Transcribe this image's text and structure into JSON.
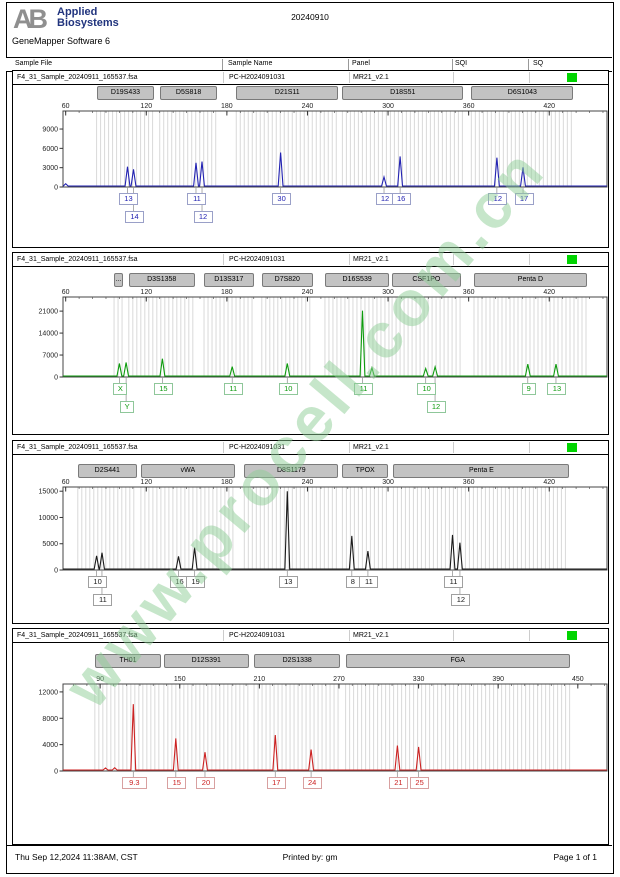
{
  "header": {
    "logo_mark": "AB",
    "brand_line1": "Applied",
    "brand_line2": "Biosystems",
    "app_title": "GeneMapper Software 6",
    "date_code": "20240910"
  },
  "table_header": {
    "sample_file": "Sample File",
    "sample_name": "Sample Name",
    "panel": "Panel",
    "sqi": "SQI",
    "sq": "SQ"
  },
  "status_color": "#00d400",
  "watermark": {
    "text": "www.procell.com.cn",
    "color": "rgba(142,206,150,0.5)"
  },
  "footer": {
    "datetime": "Thu Sep 12,2024 11:38AM, CST",
    "printed_by": "Printed by: gm",
    "page": "Page 1 of 1"
  },
  "chart_data": [
    {
      "type": "line",
      "sample_file": "F4_31_Sample_20240911_165537.fsa",
      "sample_name": "PC-H2024091031",
      "panel_name": "MR21_v2.1",
      "dye_color": "#2222b2",
      "label_border": "#9aa0c8",
      "x_range": [
        58,
        463
      ],
      "x_ticks": [
        60,
        120,
        180,
        240,
        300,
        360,
        420
      ],
      "y_ticks": [
        0,
        3000,
        6000,
        9000
      ],
      "y_max": 11800,
      "markers": [
        {
          "label": "D19S433",
          "start": 83,
          "end": 126
        },
        {
          "label": "D5S818",
          "start": 130,
          "end": 173
        },
        {
          "label": "D21S11",
          "start": 187,
          "end": 263
        },
        {
          "label": "D18S51",
          "start": 266,
          "end": 356
        },
        {
          "label": "D6S1043",
          "start": 362,
          "end": 438
        }
      ],
      "peaks": [
        {
          "bp": 60,
          "rfu": 350,
          "allele": "",
          "row": null
        },
        {
          "bp": 106,
          "rfu": 3000,
          "allele": "13",
          "row": 0
        },
        {
          "bp": 110.5,
          "rfu": 2600,
          "allele": "14",
          "row": 1
        },
        {
          "bp": 157,
          "rfu": 3600,
          "allele": "11",
          "row": 0
        },
        {
          "bp": 161.5,
          "rfu": 3800,
          "allele": "12",
          "row": 1
        },
        {
          "bp": 220,
          "rfu": 5200,
          "allele": "30",
          "row": 0
        },
        {
          "bp": 297,
          "rfu": 1400,
          "allele": "12",
          "row": 0
        },
        {
          "bp": 309,
          "rfu": 4600,
          "allele": "16",
          "row": 0
        },
        {
          "bp": 381,
          "rfu": 4400,
          "allele": "12",
          "row": 0
        },
        {
          "bp": 400.5,
          "rfu": 2900,
          "allele": "17",
          "row": 0
        }
      ]
    },
    {
      "type": "line",
      "sample_file": "F4_31_Sample_20240911_165537.fsa",
      "sample_name": "PC-H2024091031",
      "panel_name": "MR21_v2.1",
      "dye_color": "#0d9b0d",
      "label_border": "#8fc79a",
      "x_range": [
        58,
        463
      ],
      "x_ticks": [
        60,
        120,
        180,
        240,
        300,
        360,
        420
      ],
      "y_ticks": [
        0,
        7000,
        14000,
        21000
      ],
      "y_max": 25500,
      "markers": [
        {
          "label": "...",
          "start": 96,
          "end": 103
        },
        {
          "label": "D3S1358",
          "start": 107,
          "end": 156
        },
        {
          "label": "D13S317",
          "start": 163,
          "end": 200
        },
        {
          "label": "D7S820",
          "start": 206,
          "end": 244
        },
        {
          "label": "D16S539",
          "start": 253,
          "end": 301
        },
        {
          "label": "CSF1PO",
          "start": 303,
          "end": 354
        },
        {
          "label": "Penta D",
          "start": 364,
          "end": 448
        }
      ],
      "peaks": [
        {
          "bp": 100,
          "rfu": 4000,
          "allele": "X",
          "row": 0
        },
        {
          "bp": 105,
          "rfu": 4300,
          "allele": "Y",
          "row": 1
        },
        {
          "bp": 132,
          "rfu": 5500,
          "allele": "15",
          "row": 0
        },
        {
          "bp": 184,
          "rfu": 3000,
          "allele": "11",
          "row": 0
        },
        {
          "bp": 225,
          "rfu": 4000,
          "allele": "10",
          "row": 0
        },
        {
          "bp": 281,
          "rfu": 20800,
          "allele": "11",
          "row": 0
        },
        {
          "bp": 288,
          "rfu": 2600,
          "allele": "",
          "row": null
        },
        {
          "bp": 328,
          "rfu": 2400,
          "allele": "10",
          "row": 0
        },
        {
          "bp": 335,
          "rfu": 2900,
          "allele": "12",
          "row": 1
        },
        {
          "bp": 404,
          "rfu": 3800,
          "allele": "9",
          "row": 0
        },
        {
          "bp": 425,
          "rfu": 3800,
          "allele": "13",
          "row": 0
        }
      ]
    },
    {
      "type": "line",
      "sample_file": "F4_31_Sample_20240911_165537.fsa",
      "sample_name": "PC-H2024091031",
      "panel_name": "MR21_v2.1",
      "dye_color": "#1a1a1a",
      "label_border": "#a0a0a0",
      "x_range": [
        58,
        463
      ],
      "x_ticks": [
        60,
        120,
        180,
        240,
        300,
        360,
        420
      ],
      "y_ticks": [
        0,
        5000,
        10000,
        15000
      ],
      "y_max": 15800,
      "markers": [
        {
          "label": "D2S441",
          "start": 69,
          "end": 113
        },
        {
          "label": "vWA",
          "start": 116,
          "end": 186
        },
        {
          "label": "D8S1179",
          "start": 193,
          "end": 263
        },
        {
          "label": "TPOX",
          "start": 266,
          "end": 300
        },
        {
          "label": "Penta E",
          "start": 304,
          "end": 435
        }
      ],
      "peaks": [
        {
          "bp": 83,
          "rfu": 2500,
          "allele": "10",
          "row": 0
        },
        {
          "bp": 87,
          "rfu": 3100,
          "allele": "11",
          "row": 1
        },
        {
          "bp": 144,
          "rfu": 2400,
          "allele": "16",
          "row": 0
        },
        {
          "bp": 156,
          "rfu": 4100,
          "allele": "19",
          "row": 0
        },
        {
          "bp": 225,
          "rfu": 14800,
          "allele": "13",
          "row": 0
        },
        {
          "bp": 273,
          "rfu": 6300,
          "allele": "8",
          "row": 0
        },
        {
          "bp": 285,
          "rfu": 3400,
          "allele": "11",
          "row": 0
        },
        {
          "bp": 348,
          "rfu": 6500,
          "allele": "11",
          "row": 0
        },
        {
          "bp": 353.5,
          "rfu": 5000,
          "allele": "12",
          "row": 1
        }
      ]
    },
    {
      "type": "line",
      "sample_file": "F4_31_Sample_20240911_165537.fsa",
      "sample_name": "PC-H2024091031",
      "panel_name": "MR21_v2.1",
      "dye_color": "#cc2222",
      "label_border": "#d8a0a0",
      "x_range": [
        62,
        472
      ],
      "x_ticks": [
        90,
        150,
        210,
        270,
        330,
        390,
        450
      ],
      "y_ticks": [
        0,
        4000,
        8000,
        12000
      ],
      "y_max": 13200,
      "markers": [
        {
          "label": "TH01",
          "start": 86,
          "end": 136
        },
        {
          "label": "D12S391",
          "start": 138,
          "end": 202
        },
        {
          "label": "D2S1338",
          "start": 206,
          "end": 271
        },
        {
          "label": "FGA",
          "start": 275,
          "end": 444
        }
      ],
      "peaks": [
        {
          "bp": 94,
          "rfu": 300,
          "allele": "",
          "row": null
        },
        {
          "bp": 101,
          "rfu": 350,
          "allele": "",
          "row": null
        },
        {
          "bp": 115,
          "rfu": 10000,
          "allele": "9.3",
          "row": 0
        },
        {
          "bp": 147,
          "rfu": 4800,
          "allele": "15",
          "row": 0
        },
        {
          "bp": 169,
          "rfu": 2700,
          "allele": "20",
          "row": 0
        },
        {
          "bp": 222,
          "rfu": 5300,
          "allele": "17",
          "row": 0
        },
        {
          "bp": 249,
          "rfu": 3100,
          "allele": "24",
          "row": 0
        },
        {
          "bp": 314,
          "rfu": 3700,
          "allele": "21",
          "row": 0
        },
        {
          "bp": 330,
          "rfu": 3500,
          "allele": "25",
          "row": 0
        }
      ]
    }
  ]
}
